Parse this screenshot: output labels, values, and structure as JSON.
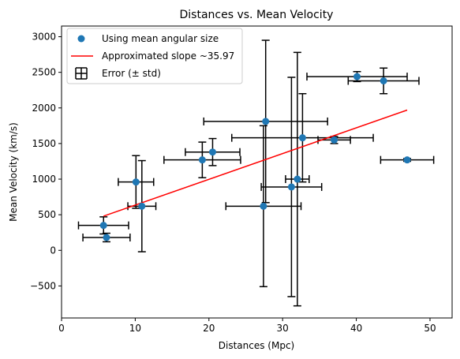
{
  "chart_data": {
    "type": "scatter",
    "title": "Distances vs. Mean Velocity",
    "xlabel": "Distances (Mpc)",
    "ylabel": "Mean Velocity (km/s)",
    "xlim": [
      0,
      53
    ],
    "ylim": [
      -950,
      3150
    ],
    "xticks": [
      0,
      10,
      20,
      30,
      40,
      50
    ],
    "yticks": [
      -500,
      0,
      500,
      1000,
      1500,
      2000,
      2500,
      3000
    ],
    "grid": false,
    "legend_position": "upper-left",
    "colors": {
      "points": "#1f77b4",
      "fit": "#ff0000",
      "errorbars": "#000000"
    },
    "legend": [
      "Using mean angular size",
      "Approximated slope ~35.97",
      "Error (± std)"
    ],
    "points": [
      {
        "x": 5.7,
        "y": 350,
        "xerr": 3.4,
        "yerr": 120
      },
      {
        "x": 6.1,
        "y": 180,
        "xerr": 3.2,
        "yerr": 60
      },
      {
        "x": 10.1,
        "y": 960,
        "xerr": 2.4,
        "yerr": 370
      },
      {
        "x": 10.9,
        "y": 620,
        "xerr": 1.9,
        "yerr": 640
      },
      {
        "x": 19.1,
        "y": 1270,
        "xerr": 5.2,
        "yerr": 250
      },
      {
        "x": 20.5,
        "y": 1380,
        "xerr": 3.7,
        "yerr": 190
      },
      {
        "x": 27.4,
        "y": 620,
        "xerr": 5.1,
        "yerr": 1130
      },
      {
        "x": 27.7,
        "y": 1810,
        "xerr": 8.4,
        "yerr": 1140
      },
      {
        "x": 31.2,
        "y": 890,
        "xerr": 4.1,
        "yerr": 1540
      },
      {
        "x": 32.0,
        "y": 1000,
        "xerr": 1.6,
        "yerr": 1780
      },
      {
        "x": 32.7,
        "y": 1580,
        "xerr": 9.6,
        "yerr": 620
      },
      {
        "x": 37.0,
        "y": 1550,
        "xerr": 2.2,
        "yerr": 50
      },
      {
        "x": 40.1,
        "y": 2440,
        "xerr": 6.8,
        "yerr": 70
      },
      {
        "x": 43.7,
        "y": 2380,
        "xerr": 4.8,
        "yerr": 180
      },
      {
        "x": 46.9,
        "y": 1270,
        "xerr": 3.6,
        "yerr": 20
      }
    ],
    "fit_line": {
      "x": [
        5.7,
        46.9
      ],
      "y": [
        480,
        1970
      ]
    }
  }
}
